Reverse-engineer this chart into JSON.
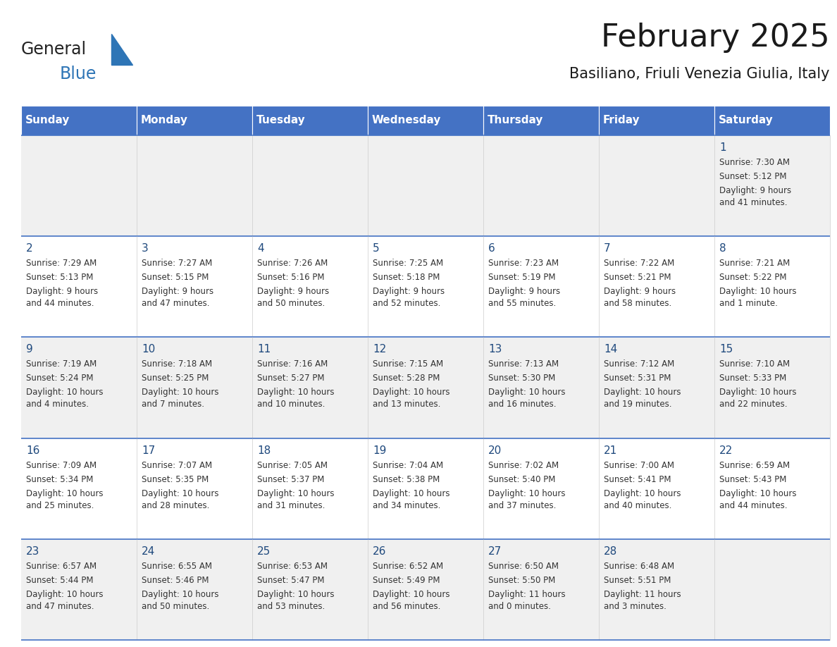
{
  "title": "February 2025",
  "subtitle": "Basiliano, Friuli Venezia Giulia, Italy",
  "header_bg": "#4472C4",
  "header_text": "#FFFFFF",
  "cell_bg_odd": "#F0F0F0",
  "cell_bg_even": "#FFFFFF",
  "cell_text": "#333333",
  "day_number_color": "#1F497D",
  "row_border_color": "#4472C4",
  "col_border_color": "#CCCCCC",
  "days_of_week": [
    "Sunday",
    "Monday",
    "Tuesday",
    "Wednesday",
    "Thursday",
    "Friday",
    "Saturday"
  ],
  "weeks": [
    [
      {
        "day": null,
        "sunrise": null,
        "sunset": null,
        "daylight": null
      },
      {
        "day": null,
        "sunrise": null,
        "sunset": null,
        "daylight": null
      },
      {
        "day": null,
        "sunrise": null,
        "sunset": null,
        "daylight": null
      },
      {
        "day": null,
        "sunrise": null,
        "sunset": null,
        "daylight": null
      },
      {
        "day": null,
        "sunrise": null,
        "sunset": null,
        "daylight": null
      },
      {
        "day": null,
        "sunrise": null,
        "sunset": null,
        "daylight": null
      },
      {
        "day": 1,
        "sunrise": "7:30 AM",
        "sunset": "5:12 PM",
        "daylight": "9 hours\nand 41 minutes."
      }
    ],
    [
      {
        "day": 2,
        "sunrise": "7:29 AM",
        "sunset": "5:13 PM",
        "daylight": "9 hours\nand 44 minutes."
      },
      {
        "day": 3,
        "sunrise": "7:27 AM",
        "sunset": "5:15 PM",
        "daylight": "9 hours\nand 47 minutes."
      },
      {
        "day": 4,
        "sunrise": "7:26 AM",
        "sunset": "5:16 PM",
        "daylight": "9 hours\nand 50 minutes."
      },
      {
        "day": 5,
        "sunrise": "7:25 AM",
        "sunset": "5:18 PM",
        "daylight": "9 hours\nand 52 minutes."
      },
      {
        "day": 6,
        "sunrise": "7:23 AM",
        "sunset": "5:19 PM",
        "daylight": "9 hours\nand 55 minutes."
      },
      {
        "day": 7,
        "sunrise": "7:22 AM",
        "sunset": "5:21 PM",
        "daylight": "9 hours\nand 58 minutes."
      },
      {
        "day": 8,
        "sunrise": "7:21 AM",
        "sunset": "5:22 PM",
        "daylight": "10 hours\nand 1 minute."
      }
    ],
    [
      {
        "day": 9,
        "sunrise": "7:19 AM",
        "sunset": "5:24 PM",
        "daylight": "10 hours\nand 4 minutes."
      },
      {
        "day": 10,
        "sunrise": "7:18 AM",
        "sunset": "5:25 PM",
        "daylight": "10 hours\nand 7 minutes."
      },
      {
        "day": 11,
        "sunrise": "7:16 AM",
        "sunset": "5:27 PM",
        "daylight": "10 hours\nand 10 minutes."
      },
      {
        "day": 12,
        "sunrise": "7:15 AM",
        "sunset": "5:28 PM",
        "daylight": "10 hours\nand 13 minutes."
      },
      {
        "day": 13,
        "sunrise": "7:13 AM",
        "sunset": "5:30 PM",
        "daylight": "10 hours\nand 16 minutes."
      },
      {
        "day": 14,
        "sunrise": "7:12 AM",
        "sunset": "5:31 PM",
        "daylight": "10 hours\nand 19 minutes."
      },
      {
        "day": 15,
        "sunrise": "7:10 AM",
        "sunset": "5:33 PM",
        "daylight": "10 hours\nand 22 minutes."
      }
    ],
    [
      {
        "day": 16,
        "sunrise": "7:09 AM",
        "sunset": "5:34 PM",
        "daylight": "10 hours\nand 25 minutes."
      },
      {
        "day": 17,
        "sunrise": "7:07 AM",
        "sunset": "5:35 PM",
        "daylight": "10 hours\nand 28 minutes."
      },
      {
        "day": 18,
        "sunrise": "7:05 AM",
        "sunset": "5:37 PM",
        "daylight": "10 hours\nand 31 minutes."
      },
      {
        "day": 19,
        "sunrise": "7:04 AM",
        "sunset": "5:38 PM",
        "daylight": "10 hours\nand 34 minutes."
      },
      {
        "day": 20,
        "sunrise": "7:02 AM",
        "sunset": "5:40 PM",
        "daylight": "10 hours\nand 37 minutes."
      },
      {
        "day": 21,
        "sunrise": "7:00 AM",
        "sunset": "5:41 PM",
        "daylight": "10 hours\nand 40 minutes."
      },
      {
        "day": 22,
        "sunrise": "6:59 AM",
        "sunset": "5:43 PM",
        "daylight": "10 hours\nand 44 minutes."
      }
    ],
    [
      {
        "day": 23,
        "sunrise": "6:57 AM",
        "sunset": "5:44 PM",
        "daylight": "10 hours\nand 47 minutes."
      },
      {
        "day": 24,
        "sunrise": "6:55 AM",
        "sunset": "5:46 PM",
        "daylight": "10 hours\nand 50 minutes."
      },
      {
        "day": 25,
        "sunrise": "6:53 AM",
        "sunset": "5:47 PM",
        "daylight": "10 hours\nand 53 minutes."
      },
      {
        "day": 26,
        "sunrise": "6:52 AM",
        "sunset": "5:49 PM",
        "daylight": "10 hours\nand 56 minutes."
      },
      {
        "day": 27,
        "sunrise": "6:50 AM",
        "sunset": "5:50 PM",
        "daylight": "11 hours\nand 0 minutes."
      },
      {
        "day": 28,
        "sunrise": "6:48 AM",
        "sunset": "5:51 PM",
        "daylight": "11 hours\nand 3 minutes."
      },
      {
        "day": null,
        "sunrise": null,
        "sunset": null,
        "daylight": null
      }
    ]
  ],
  "logo_general_color": "#222222",
  "logo_blue_color": "#2E75B6",
  "logo_triangle_color": "#2E75B6",
  "title_fontsize": 32,
  "subtitle_fontsize": 15,
  "header_fontsize": 11,
  "day_number_fontsize": 11,
  "cell_text_fontsize": 8.5
}
